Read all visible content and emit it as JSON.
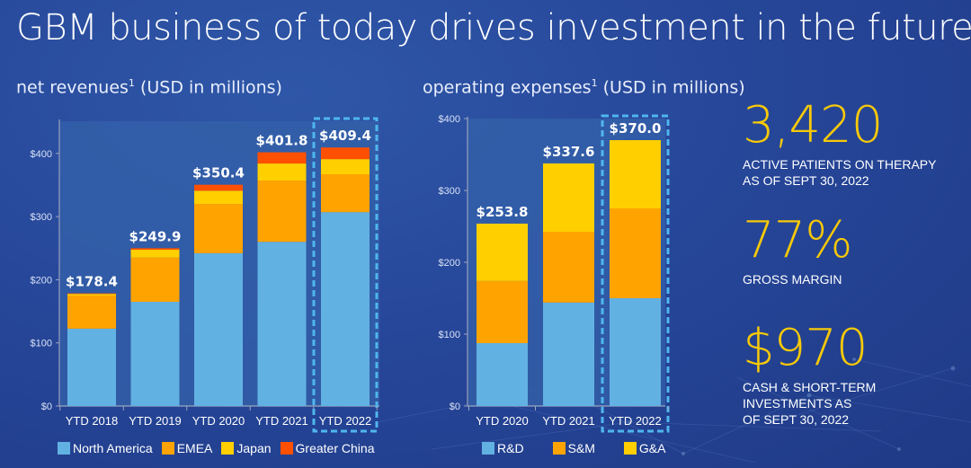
{
  "page": {
    "title": "GBM business of today drives investment in the future"
  },
  "colors": {
    "background": "#27479a",
    "plot_bg": "#3462aa",
    "north_america": "#62b1e3",
    "emea": "#ffa300",
    "japan": "#ffcf00",
    "greater_china": "#ff5000",
    "rd": "#62b1e3",
    "sm": "#ffa300",
    "ga": "#ffcf00",
    "highlight": "#4fb6ee",
    "kpi": "#f7c908"
  },
  "chart_data": [
    {
      "type": "bar",
      "stacked": true,
      "title": "net revenues",
      "title_superscript": "1",
      "title_suffix": " (USD in millions)",
      "xlabel": "",
      "ylabel": "",
      "ylim": [
        0,
        450
      ],
      "yticks": [
        0,
        100,
        200,
        300,
        400
      ],
      "ytick_labels": [
        "$0",
        "$100",
        "$200",
        "$300",
        "$400"
      ],
      "categories": [
        "YTD 2018",
        "YTD 2019",
        "YTD 2020",
        "YTD 2021",
        "YTD 2022"
      ],
      "totals": [
        178.4,
        249.9,
        350.4,
        401.8,
        409.4
      ],
      "total_labels": [
        "$178.4",
        "$249.9",
        "$350.4",
        "$401.8",
        "$409.4"
      ],
      "highlighted_category": "YTD 2022",
      "series": [
        {
          "name": "North America",
          "color_key": "north_america",
          "values": [
            122.5,
            165.0,
            242.0,
            260.0,
            307.0
          ]
        },
        {
          "name": "EMEA",
          "color_key": "emea",
          "values": [
            52.5,
            70.0,
            78.0,
            97.0,
            60.0
          ]
        },
        {
          "name": "Japan",
          "color_key": "japan",
          "values": [
            2.5,
            12.5,
            21.0,
            27.0,
            24.0
          ]
        },
        {
          "name": "Greater China",
          "color_key": "greater_china",
          "values": [
            0.9,
            2.4,
            9.4,
            17.8,
            18.4
          ]
        }
      ],
      "legend_position": "bottom",
      "grid": false
    },
    {
      "type": "bar",
      "stacked": true,
      "title": "operating expenses",
      "title_superscript": "1",
      "title_suffix": " (USD in millions)",
      "xlabel": "",
      "ylabel": "",
      "ylim": [
        0,
        400
      ],
      "yticks": [
        0,
        100,
        200,
        300,
        400
      ],
      "ytick_labels": [
        "$0",
        "$100",
        "$200",
        "$300",
        "$400"
      ],
      "categories": [
        "YTD 2020",
        "YTD 2021",
        "YTD 2022"
      ],
      "totals": [
        253.8,
        337.6,
        370.0
      ],
      "total_labels": [
        "$253.8",
        "$337.6",
        "$370.0"
      ],
      "highlighted_category": "YTD 2022",
      "series": [
        {
          "name": "R&D",
          "color_key": "rd",
          "values": [
            87.5,
            144.0,
            150.0
          ]
        },
        {
          "name": "S&M",
          "color_key": "sm",
          "values": [
            86.5,
            98.5,
            125.0
          ]
        },
        {
          "name": "G&A",
          "color_key": "ga",
          "values": [
            79.8,
            95.1,
            95.0
          ]
        }
      ],
      "legend_position": "bottom",
      "grid": false
    }
  ],
  "kpis": [
    {
      "value": "3,420",
      "caption_lines": [
        "ACTIVE PATIENTS ON THERAPY",
        "AS OF SEPT 30, 2022"
      ]
    },
    {
      "value": "77%",
      "caption_lines": [
        "GROSS MARGIN"
      ]
    },
    {
      "value": "$970",
      "caption_lines": [
        "CASH & SHORT-TERM",
        "INVESTMENTS AS",
        "OF SEPT 30, 2022"
      ]
    }
  ]
}
